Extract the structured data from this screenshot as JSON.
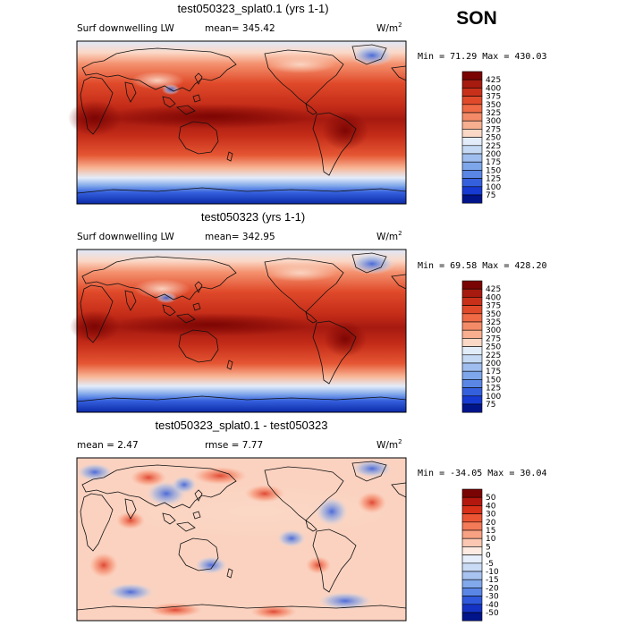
{
  "season": "SON",
  "panels": [
    {
      "title": "test050323_splat0.1 (yrs 1-1)",
      "variable": "Surf downwelling LW",
      "stat1": "mean= 345.42",
      "stat2": "",
      "units": "W/m",
      "units_exp": "2",
      "minmax": "Min =  71.29 Max = 430.03",
      "colorbar": {
        "levels": [
          "425",
          "400",
          "375",
          "350",
          "325",
          "300",
          "275",
          "250",
          "225",
          "200",
          "175",
          "150",
          "125",
          "100",
          "75"
        ],
        "colors": [
          "#7a0403",
          "#a61a10",
          "#c9301a",
          "#e04a2a",
          "#ef6a45",
          "#f48b68",
          "#f8af90",
          "#fbd8c6",
          "#e3ecf9",
          "#c5d9f4",
          "#9fbdee",
          "#7ea6ea",
          "#5a86e6",
          "#3560dd",
          "#173ad2",
          "#02148a"
        ]
      }
    },
    {
      "title": "test050323 (yrs 1-1)",
      "variable": "Surf downwelling LW",
      "stat1": "mean= 342.95",
      "stat2": "",
      "units": "W/m",
      "units_exp": "2",
      "minmax": "Min =  69.58 Max = 428.20",
      "colorbar": {
        "levels": [
          "425",
          "400",
          "375",
          "350",
          "325",
          "300",
          "275",
          "250",
          "225",
          "200",
          "175",
          "150",
          "125",
          "100",
          "75"
        ],
        "colors": [
          "#7a0403",
          "#a61a10",
          "#c9301a",
          "#e04a2a",
          "#ef6a45",
          "#f48b68",
          "#f8af90",
          "#fbd8c6",
          "#e3ecf9",
          "#c5d9f4",
          "#9fbdee",
          "#7ea6ea",
          "#5a86e6",
          "#3560dd",
          "#173ad2",
          "#02148a"
        ]
      }
    },
    {
      "title": "test050323_splat0.1 - test050323",
      "variable": "",
      "stat1": "mean =    2.47",
      "stat2": "rmse =    7.77",
      "units": "W/m",
      "units_exp": "2",
      "minmax": "Min = -34.05 Max =  30.04",
      "colorbar": {
        "levels": [
          "50",
          "40",
          "30",
          "20",
          "15",
          "10",
          "5",
          "0",
          "-5",
          "-10",
          "-15",
          "-20",
          "-30",
          "-40",
          "-50"
        ],
        "colors": [
          "#7a0403",
          "#b3170e",
          "#d9301a",
          "#ec5533",
          "#f47a58",
          "#f8a183",
          "#fbc7b2",
          "#fdebe2",
          "#e6eefb",
          "#c9dbf5",
          "#a8c3f0",
          "#82a9eb",
          "#5a86e6",
          "#2f58dc",
          "#1433c5",
          "#02148a"
        ]
      }
    }
  ]
}
